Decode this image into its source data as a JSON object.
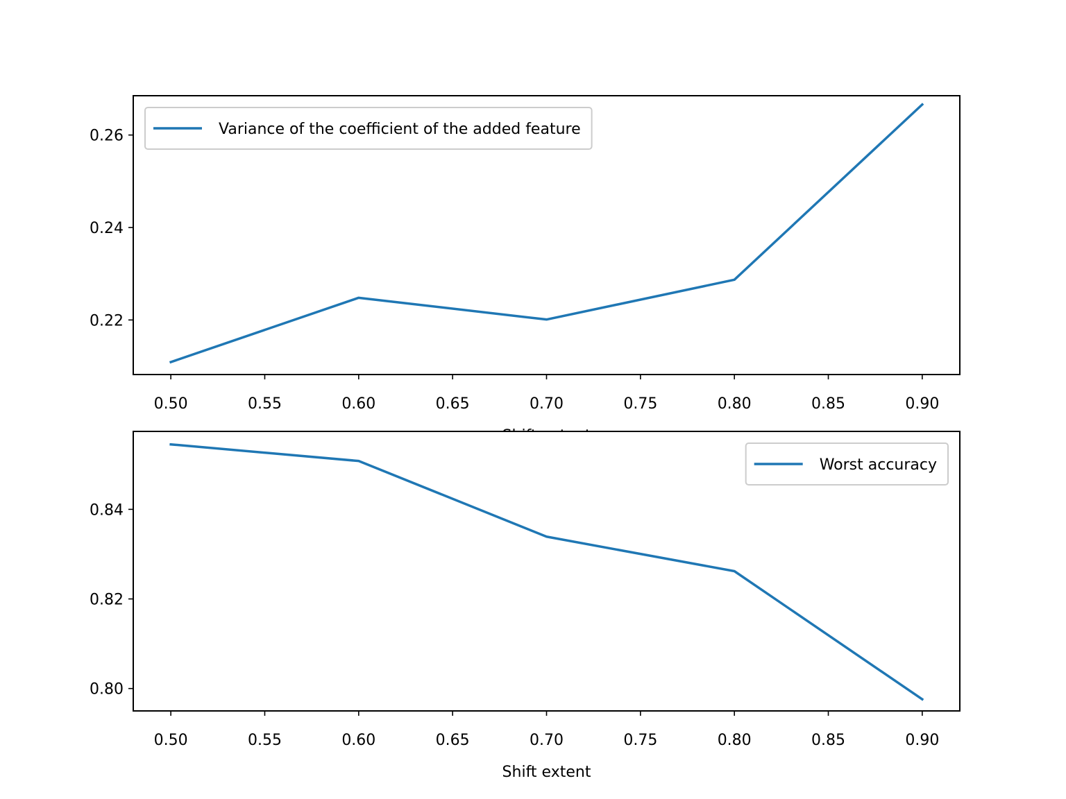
{
  "chart_data": [
    {
      "type": "line",
      "x": [
        0.5,
        0.6,
        0.7,
        0.8,
        0.9
      ],
      "series": [
        {
          "name": "Variance of the coefficient of the added feature",
          "values": [
            0.2109,
            0.2248,
            0.2201,
            0.2287,
            0.2666
          ],
          "color": "#1f77b4"
        }
      ],
      "xlabel": "Shift extent",
      "ylabel": "",
      "xlim": [
        0.48,
        0.92
      ],
      "ylim": [
        0.2082,
        0.2685
      ],
      "xticks": [
        "0.50",
        "0.55",
        "0.60",
        "0.65",
        "0.70",
        "0.75",
        "0.80",
        "0.85",
        "0.90"
      ],
      "yticks": [
        "0.22",
        "0.24",
        "0.26"
      ],
      "legend": "top-left",
      "grid": false
    },
    {
      "type": "line",
      "x": [
        0.5,
        0.6,
        0.7,
        0.8,
        0.9
      ],
      "series": [
        {
          "name": "Worst accuracy",
          "values": [
            0.8545,
            0.8508,
            0.8339,
            0.8262,
            0.7976
          ],
          "color": "#1f77b4"
        }
      ],
      "xlabel": "Shift extent",
      "ylabel": "",
      "xlim": [
        0.48,
        0.92
      ],
      "ylim": [
        0.795,
        0.8574
      ],
      "xticks": [
        "0.50",
        "0.55",
        "0.60",
        "0.65",
        "0.70",
        "0.75",
        "0.80",
        "0.85",
        "0.90"
      ],
      "yticks": [
        "0.80",
        "0.82",
        "0.84"
      ],
      "legend": "top-right",
      "grid": false
    }
  ]
}
